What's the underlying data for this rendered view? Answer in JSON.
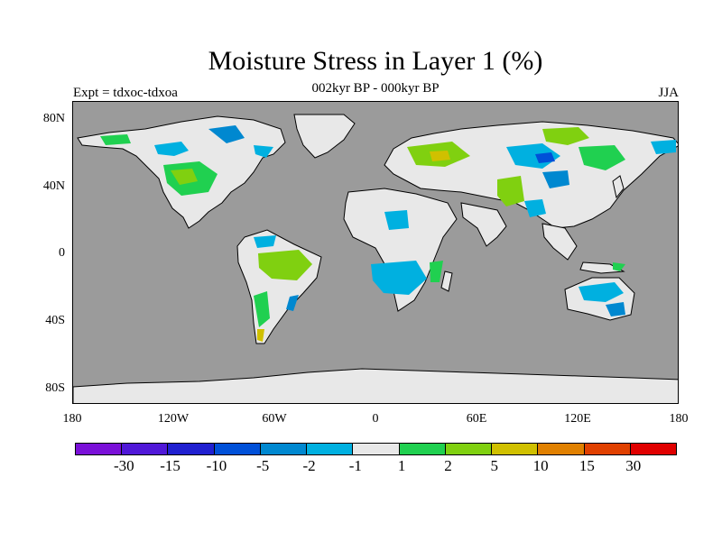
{
  "header": {
    "title": "Moisture Stress in Layer 1 (%)",
    "subtitle": "002kyr BP - 000kyr BP",
    "left_label": "Expt = tdxoc-tdxoa",
    "right_label": "JJA"
  },
  "axes": {
    "lat_ticks": [
      "80N",
      "40N",
      "0",
      "40S",
      "80S"
    ],
    "lon_ticks": [
      "180",
      "120W",
      "60W",
      "0",
      "60E",
      "120E",
      "180"
    ]
  },
  "colors": {
    "ocean": "#9b9b9b",
    "neutral_land": "#e8e8e8",
    "coastline": "#000000"
  },
  "legend": {
    "swatches": [
      "#7a10d8",
      "#5018d8",
      "#2020d0",
      "#0050d8",
      "#0088d0",
      "#00b0e0",
      "#e8e8e8",
      "#20d050",
      "#80d010",
      "#d0c000",
      "#e08000",
      "#e04000",
      "#e00000"
    ],
    "labels": [
      "-30",
      "-15",
      "-10",
      "-5",
      "-2",
      "-1",
      "1",
      "2",
      "5",
      "10",
      "15",
      "30"
    ]
  }
}
